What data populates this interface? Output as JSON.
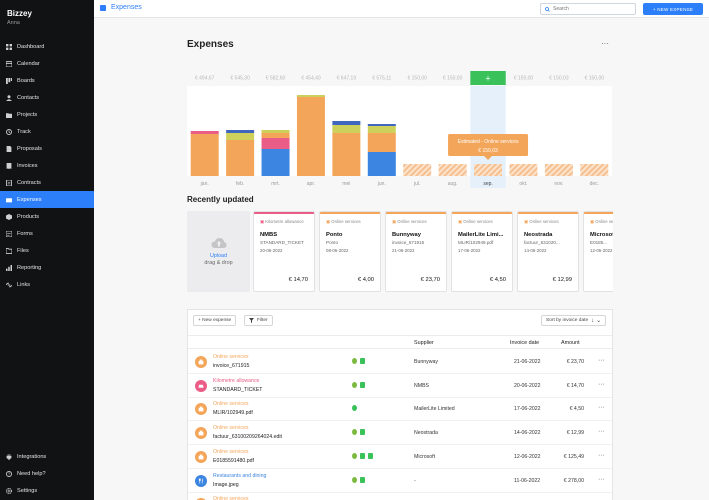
{
  "sidebar": {
    "brand": "Bizzey",
    "user": "Anna",
    "items": [
      {
        "label": "Dashboard",
        "icon": "dashboard-icon"
      },
      {
        "label": "Calendar",
        "icon": "calendar-icon"
      },
      {
        "label": "Boards",
        "icon": "boards-icon"
      },
      {
        "label": "Contacts",
        "icon": "contacts-icon"
      },
      {
        "label": "Projects",
        "icon": "projects-icon"
      },
      {
        "label": "Track",
        "icon": "track-icon"
      },
      {
        "label": "Proposals",
        "icon": "proposals-icon"
      },
      {
        "label": "Invoices",
        "icon": "invoices-icon"
      },
      {
        "label": "Contracts",
        "icon": "contracts-icon"
      },
      {
        "label": "Expenses",
        "icon": "expenses-icon"
      },
      {
        "label": "Products",
        "icon": "products-icon"
      },
      {
        "label": "Forms",
        "icon": "forms-icon"
      },
      {
        "label": "Files",
        "icon": "files-icon"
      },
      {
        "label": "Reporting",
        "icon": "reporting-icon"
      },
      {
        "label": "Links",
        "icon": "links-icon"
      }
    ],
    "bottom": [
      {
        "label": "Integrations",
        "icon": "integrations-icon"
      },
      {
        "label": "Need help?",
        "icon": "help-icon"
      },
      {
        "label": "Settings",
        "icon": "settings-icon"
      }
    ]
  },
  "topbar": {
    "title": "Expenses",
    "search_placeholder": "Search",
    "new_expense": "+ NEW EXPENSE"
  },
  "main": {
    "title": "Expenses",
    "more": "···",
    "recent_title": "Recently updated",
    "upload": {
      "line1": "Upload",
      "line2": "drag & drop"
    }
  },
  "colors": {
    "accent": "#2d7ff9",
    "orange": "#f3a65a",
    "pink": "#ea5d86",
    "yellow": "#cdd05a",
    "blue": "#3c85e0",
    "navy": "#3f67c0",
    "green": "#3ac15a"
  },
  "chart_data": {
    "type": "bar",
    "categories": [
      "jan.",
      "feb.",
      "mrt.",
      "apr.",
      "mei",
      "jun.",
      "jul.",
      "aug.",
      "sep.",
      "okt.",
      "nov.",
      "dec."
    ],
    "top_labels": [
      "€ 494,67",
      "€ 545,30",
      "€ 582,60",
      "€ 454,40",
      "€ 647,19",
      "€ 575,11",
      "€ 150,00",
      "€ 150,00",
      "+",
      "€ 150,00",
      "€ 150,03",
      "€ 150,00"
    ],
    "stacks": [
      [
        {
          "color": "#f3a65a",
          "value": 42
        },
        {
          "color": "#ea5d86",
          "value": 3
        }
      ],
      [
        {
          "color": "#f3a65a",
          "value": 36
        },
        {
          "color": "#cdd05a",
          "value": 7
        },
        {
          "color": "#3f67c0",
          "value": 3
        }
      ],
      [
        {
          "color": "#3c85e0",
          "value": 27
        },
        {
          "color": "#ea5d86",
          "value": 11
        },
        {
          "color": "#f3a65a",
          "value": 5
        },
        {
          "color": "#cdd05a",
          "value": 3
        }
      ],
      [
        {
          "color": "#f3a65a",
          "value": 79
        },
        {
          "color": "#cdd05a",
          "value": 2
        }
      ],
      [
        {
          "color": "#f3a65a",
          "value": 43
        },
        {
          "color": "#cdd05a",
          "value": 8
        },
        {
          "color": "#3f67c0",
          "value": 4
        }
      ],
      [
        {
          "color": "#3c85e0",
          "value": 24
        },
        {
          "color": "#f3a65a",
          "value": 19
        },
        {
          "color": "#cdd05a",
          "value": 7
        },
        {
          "color": "#3f67c0",
          "value": 2
        }
      ],
      [
        {
          "color": "#f6c7a0",
          "value": 12,
          "estimated": true
        }
      ],
      [
        {
          "color": "#f6c7a0",
          "value": 12,
          "estimated": true
        }
      ],
      [
        {
          "color": "#f6c7a0",
          "value": 12,
          "estimated": true
        }
      ],
      [
        {
          "color": "#f6c7a0",
          "value": 12,
          "estimated": true
        }
      ],
      [
        {
          "color": "#f6c7a0",
          "value": 12,
          "estimated": true
        }
      ],
      [
        {
          "color": "#f6c7a0",
          "value": 12,
          "estimated": true
        }
      ]
    ],
    "ylim": [
      0,
      90
    ],
    "highlight_index": 8,
    "tooltip": {
      "title": "Estimated - Online services",
      "value": "€ 150,03"
    }
  },
  "recent": [
    {
      "category": "Kilometre allowance",
      "color": "#ea5d86",
      "supplier": "NMBS",
      "doc": "STANDARD_TICKET",
      "date": "20-06-2022",
      "amount": "€ 14,70"
    },
    {
      "category": "Online services",
      "color": "#f3a65a",
      "supplier": "Ponto",
      "doc": "Ponto",
      "date": "08-06-2022",
      "amount": "€ 4,00"
    },
    {
      "category": "Online services",
      "color": "#f3a65a",
      "supplier": "Bunnyway",
      "doc": "invoice_671915",
      "date": "21-06-2022",
      "amount": "€ 23,70"
    },
    {
      "category": "Online services",
      "color": "#f3a65a",
      "supplier": "MailerLite Limi...",
      "doc": "MLIR/102949.pdf",
      "date": "17-06-2022",
      "amount": "€ 4,50"
    },
    {
      "category": "Online services",
      "color": "#f3a65a",
      "supplier": "Neostrada",
      "doc": "factuur_631020...",
      "date": "14-06-2022",
      "amount": "€ 12,99"
    },
    {
      "category": "Online services",
      "color": "#f3a65a",
      "supplier": "Microsoft",
      "doc": "E0185...",
      "date": "12-06-2022",
      "amount": "€ 1..."
    }
  ],
  "table": {
    "new_expense": "+ New expense",
    "filter": "Filter",
    "sort": "Sort by invoice date",
    "headers": {
      "supplier": "Supplier",
      "invoice_date": "Invoice date",
      "amount": "Amount"
    },
    "rows": [
      {
        "category": "Online services",
        "color": "#f3a65a",
        "file": "invoice_671915",
        "supplier": "Bunnyway",
        "date": "21-06-2022",
        "amount": "€ 23,70",
        "icons": [
          "#7cba3f",
          "#3ac15a"
        ]
      },
      {
        "category": "Kilometre allowance",
        "color": "#ea5d86",
        "file": "STANDARD_TICKET",
        "supplier": "NMBS",
        "date": "20-06-2022",
        "amount": "€ 14,70",
        "icons": [
          "#7cba3f",
          "#3ac15a"
        ]
      },
      {
        "category": "Online services",
        "color": "#f3a65a",
        "file": "MLIR/102949.pdf",
        "supplier": "MailerLite Limited",
        "date": "17-06-2022",
        "amount": "€ 4,50",
        "icons": [
          "#3ac15a"
        ]
      },
      {
        "category": "Online services",
        "color": "#f3a65a",
        "file": "factuur_63100209264024.edit",
        "supplier": "Neostrada",
        "date": "14-06-2022",
        "amount": "€ 12,99",
        "icons": [
          "#7cba3f",
          "#3ac15a"
        ]
      },
      {
        "category": "Online services",
        "color": "#f3a65a",
        "file": "E0185591480.pdf",
        "supplier": "Microsoft",
        "date": "12-06-2022",
        "amount": "€ 125,49",
        "icons": [
          "#7cba3f",
          "#3ac15a",
          "#3ac15a"
        ]
      },
      {
        "category": "Restaurants and dining",
        "color": "#3c85e0",
        "file": "Image.jpeg",
        "supplier": "-",
        "date": "11-06-2022",
        "amount": "€ 278,00",
        "icons": [
          "#7cba3f",
          "#3ac15a"
        ]
      },
      {
        "category": "Online services",
        "color": "#f3a65a",
        "file": "",
        "supplier": "",
        "date": "",
        "amount": "",
        "icons": [
          "#7cba3f",
          "#3ac15a"
        ]
      }
    ]
  }
}
